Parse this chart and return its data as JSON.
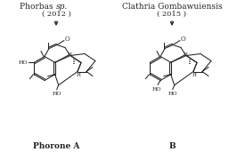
{
  "title_left": "Phorbas sp.",
  "title_right": "Clathria Gombawuiensis",
  "year_left": "( 2012 )",
  "year_right": "( 2015 )",
  "label_left": "Phorone A",
  "label_right": "B",
  "bg_color": "#ffffff",
  "line_color": "#222222",
  "text_color": "#222222",
  "title_fontsize": 6.5,
  "label_fontsize": 6.5,
  "year_fontsize": 6.0
}
